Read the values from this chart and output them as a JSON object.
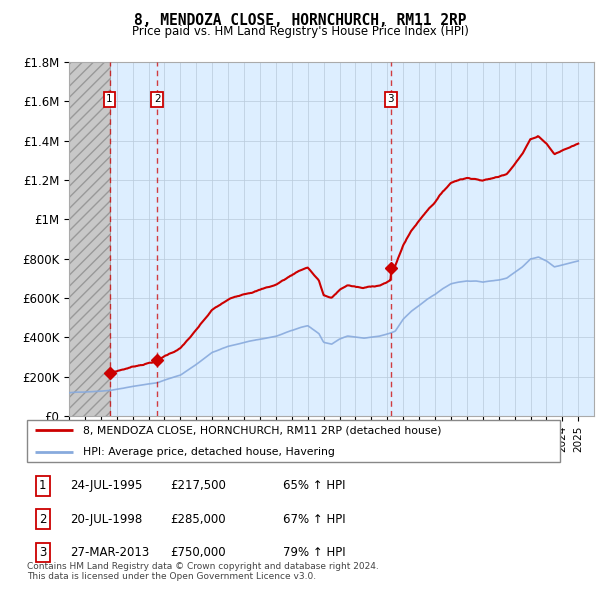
{
  "title": "8, MENDOZA CLOSE, HORNCHURCH, RM11 2RP",
  "subtitle": "Price paid vs. HM Land Registry's House Price Index (HPI)",
  "ylim": [
    0,
    1800000
  ],
  "yticks": [
    0,
    200000,
    400000,
    600000,
    800000,
    1000000,
    1200000,
    1400000,
    1600000,
    1800000
  ],
  "ytick_labels": [
    "£0",
    "£200K",
    "£400K",
    "£600K",
    "£800K",
    "£1M",
    "£1.2M",
    "£1.4M",
    "£1.6M",
    "£1.8M"
  ],
  "xlim_start": 1993.0,
  "xlim_end": 2025.99,
  "hatch_end_year": 1995.55,
  "sale_dates": [
    1995.55,
    1998.55,
    2013.23
  ],
  "sale_prices": [
    217500,
    285000,
    750000
  ],
  "sale_labels": [
    "1",
    "2",
    "3"
  ],
  "legend_property_label": "8, MENDOZA CLOSE, HORNCHURCH, RM11 2RP (detached house)",
  "legend_hpi_label": "HPI: Average price, detached house, Havering",
  "table_rows": [
    [
      "1",
      "24-JUL-1995",
      "£217,500",
      "65% ↑ HPI"
    ],
    [
      "2",
      "20-JUL-1998",
      "£285,000",
      "67% ↑ HPI"
    ],
    [
      "3",
      "27-MAR-2013",
      "£750,000",
      "79% ↑ HPI"
    ]
  ],
  "footnote": "Contains HM Land Registry data © Crown copyright and database right 2024.\nThis data is licensed under the Open Government Licence v3.0.",
  "property_color": "#cc0000",
  "hpi_color": "#88aadd",
  "grid_color": "#bbccdd",
  "bg_color": "#ddeeff",
  "hatch_bg": "#cccccc"
}
